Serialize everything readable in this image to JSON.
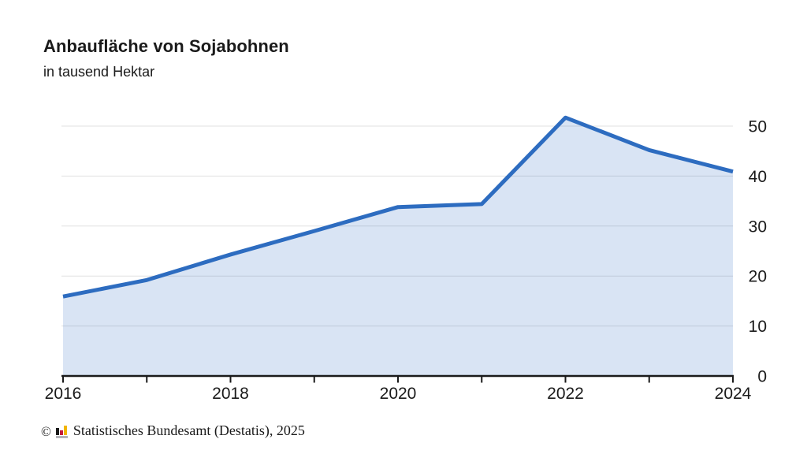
{
  "header": {
    "title": "Anbaufläche von Sojabohnen",
    "subtitle": "in tausend Hektar"
  },
  "footer": {
    "copyright_symbol": "©",
    "source_text": "Statistisches Bundesamt (Destatis), 2025"
  },
  "chart_data": {
    "type": "area",
    "title": "Anbaufläche von Sojabohnen",
    "ylabel": "in tausend Hektar",
    "xlabel": "",
    "x": [
      2016,
      2017,
      2018,
      2019,
      2020,
      2021,
      2022,
      2023,
      2024
    ],
    "values": [
      15.9,
      19.2,
      24.3,
      29.0,
      33.8,
      34.4,
      51.7,
      45.2,
      40.9
    ],
    "series_name": "Anbaufläche von Sojabohnen (tausend Hektar)",
    "xlim": [
      2016,
      2024
    ],
    "ylim": [
      0,
      50
    ],
    "y_ticks": [
      0,
      10,
      20,
      30,
      40,
      50
    ],
    "x_ticks": [
      2016,
      2017,
      2018,
      2019,
      2020,
      2021,
      2022,
      2023,
      2024
    ],
    "x_tick_labels": [
      2016,
      2018,
      2020,
      2022,
      2024
    ],
    "legend": "none",
    "grid": "horizontal",
    "y_axis_side": "right",
    "colors": {
      "line": "#2d6cc0",
      "fill": "#2d6cc0",
      "fill_opacity": 0.18,
      "grid": "#e0e0e0",
      "axis": "#1a1a1a",
      "text": "#1a1a1a"
    }
  }
}
